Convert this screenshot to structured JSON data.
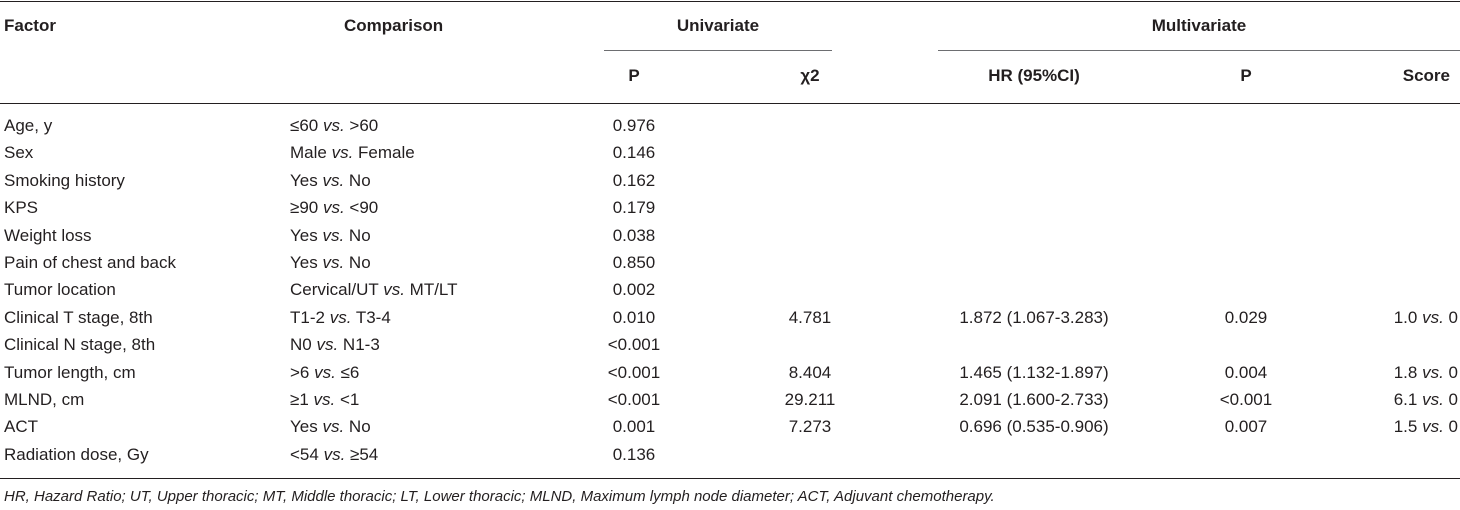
{
  "headers": {
    "factor": "Factor",
    "comparison": "Comparison",
    "univariate": "Univariate",
    "multivariate": "Multivariate",
    "uni_p": "P",
    "chi2": "χ2",
    "hr": "HR (95%CI)",
    "multi_p": "P",
    "score": "Score"
  },
  "vs_text": "vs.",
  "rows": [
    {
      "factor": "Age, y",
      "cmp_a": "≤60",
      "cmp_b": ">60",
      "uni_p": "0.976",
      "chi2": "",
      "hr": "",
      "multi_p": "",
      "score_a": "",
      "score_b": ""
    },
    {
      "factor": "Sex",
      "cmp_a": "Male",
      "cmp_b": "Female",
      "uni_p": "0.146",
      "chi2": "",
      "hr": "",
      "multi_p": "",
      "score_a": "",
      "score_b": ""
    },
    {
      "factor": "Smoking history",
      "cmp_a": "Yes",
      "cmp_b": "No",
      "uni_p": "0.162",
      "chi2": "",
      "hr": "",
      "multi_p": "",
      "score_a": "",
      "score_b": ""
    },
    {
      "factor": "KPS",
      "cmp_a": "≥90",
      "cmp_b": "<90",
      "uni_p": "0.179",
      "chi2": "",
      "hr": "",
      "multi_p": "",
      "score_a": "",
      "score_b": ""
    },
    {
      "factor": "Weight loss",
      "cmp_a": "Yes",
      "cmp_b": "No",
      "uni_p": "0.038",
      "chi2": "",
      "hr": "",
      "multi_p": "",
      "score_a": "",
      "score_b": ""
    },
    {
      "factor": "Pain of chest and back",
      "cmp_a": "Yes",
      "cmp_b": "No",
      "uni_p": "0.850",
      "chi2": "",
      "hr": "",
      "multi_p": "",
      "score_a": "",
      "score_b": ""
    },
    {
      "factor": "Tumor location",
      "cmp_a": "Cervical/UT",
      "cmp_b": "MT/LT",
      "uni_p": "0.002",
      "chi2": "",
      "hr": "",
      "multi_p": "",
      "score_a": "",
      "score_b": ""
    },
    {
      "factor": "Clinical T stage, 8th",
      "cmp_a": "T1-2",
      "cmp_b": "T3-4",
      "uni_p": "0.010",
      "chi2": "4.781",
      "hr": "1.872 (1.067-3.283)",
      "multi_p": "0.029",
      "score_a": "1.0",
      "score_b": "0"
    },
    {
      "factor": "Clinical N stage, 8th",
      "cmp_a": "N0",
      "cmp_b": "N1-3",
      "uni_p": "<0.001",
      "chi2": "",
      "hr": "",
      "multi_p": "",
      "score_a": "",
      "score_b": ""
    },
    {
      "factor": "Tumor length, cm",
      "cmp_a": ">6",
      "cmp_b": "≤6",
      "uni_p": "<0.001",
      "chi2": "8.404",
      "hr": "1.465 (1.132-1.897)",
      "multi_p": "0.004",
      "score_a": "1.8",
      "score_b": "0"
    },
    {
      "factor": "MLND, cm",
      "cmp_a": "≥1",
      "cmp_b": "<1",
      "uni_p": "<0.001",
      "chi2": "29.211",
      "hr": "2.091 (1.600-2.733)",
      "multi_p": "<0.001",
      "score_a": "6.1",
      "score_b": "0"
    },
    {
      "factor": "ACT",
      "cmp_a": "Yes",
      "cmp_b": "No",
      "uni_p": "0.001",
      "chi2": "7.273",
      "hr": "0.696 (0.535-0.906)",
      "multi_p": "0.007",
      "score_a": "1.5",
      "score_b": "0"
    },
    {
      "factor": "Radiation dose, Gy",
      "cmp_a": "<54",
      "cmp_b": "≥54",
      "uni_p": "0.136",
      "chi2": "",
      "hr": "",
      "multi_p": "",
      "score_a": "",
      "score_b": ""
    }
  ],
  "footnote": "HR, Hazard Ratio; UT, Upper thoracic; MT, Middle thoracic; LT, Lower thoracic; MLND, Maximum lymph node diameter; ACT, Adjuvant chemotherapy."
}
